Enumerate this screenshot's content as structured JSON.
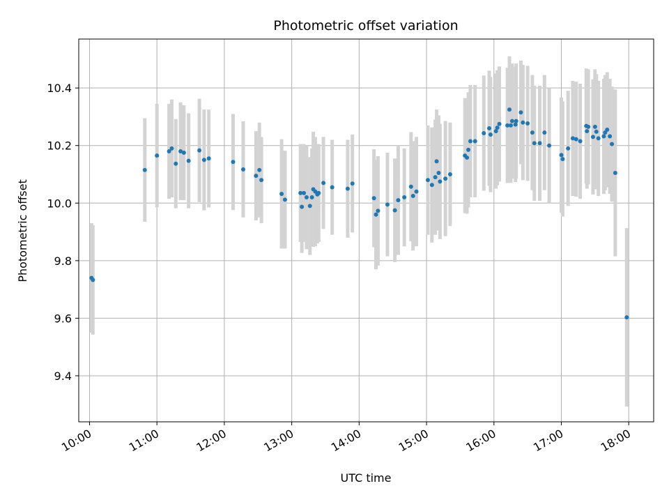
{
  "chart_data": {
    "type": "scatter",
    "title": "Photometric offset variation",
    "xlabel": "UTC time",
    "ylabel": "Photometric offset",
    "x_unit": "hours",
    "xlim": [
      9.84,
      18.37
    ],
    "ylim": [
      9.24,
      10.57
    ],
    "x_ticks": [
      {
        "value": 10,
        "label": "10:00"
      },
      {
        "value": 11,
        "label": "11:00"
      },
      {
        "value": 12,
        "label": "12:00"
      },
      {
        "value": 13,
        "label": "13:00"
      },
      {
        "value": 14,
        "label": "14:00"
      },
      {
        "value": 15,
        "label": "15:00"
      },
      {
        "value": 16,
        "label": "16:00"
      },
      {
        "value": 17,
        "label": "17:00"
      },
      {
        "value": 18,
        "label": "18:00"
      }
    ],
    "y_ticks": [
      {
        "value": 9.4,
        "label": "9.4"
      },
      {
        "value": 9.6,
        "label": "9.6"
      },
      {
        "value": 9.8,
        "label": "9.8"
      },
      {
        "value": 10.0,
        "label": "10.0"
      },
      {
        "value": 10.2,
        "label": "10.2"
      },
      {
        "value": 10.4,
        "label": "10.4"
      }
    ],
    "grid": true,
    "colors": {
      "point": "#1f77b4",
      "errorbar": "#d3d3d3",
      "grid": "#b0b0b0"
    },
    "points": [
      [
        10.03,
        9.74,
        0.19
      ],
      [
        10.05,
        9.733,
        0.19
      ],
      [
        10.82,
        10.115,
        0.18
      ],
      [
        11.0,
        10.165,
        0.18
      ],
      [
        11.18,
        10.18,
        0.165
      ],
      [
        11.22,
        10.19,
        0.17
      ],
      [
        11.28,
        10.137,
        0.155
      ],
      [
        11.35,
        10.18,
        0.17
      ],
      [
        11.4,
        10.175,
        0.165
      ],
      [
        11.47,
        10.147,
        0.165
      ],
      [
        11.63,
        10.183,
        0.18
      ],
      [
        11.7,
        10.15,
        0.175
      ],
      [
        11.77,
        10.155,
        0.17
      ],
      [
        12.13,
        10.143,
        0.167
      ],
      [
        12.28,
        10.117,
        0.167
      ],
      [
        12.47,
        10.095,
        0.155
      ],
      [
        12.52,
        10.115,
        0.165
      ],
      [
        12.55,
        10.08,
        0.15
      ],
      [
        12.85,
        10.032,
        0.19
      ],
      [
        12.9,
        10.012,
        0.17
      ],
      [
        13.13,
        10.035,
        0.17
      ],
      [
        13.15,
        9.987,
        0.16
      ],
      [
        13.18,
        10.035,
        0.17
      ],
      [
        13.22,
        10.02,
        0.18
      ],
      [
        13.27,
        9.99,
        0.17
      ],
      [
        13.3,
        10.02,
        0.17
      ],
      [
        13.32,
        10.048,
        0.2
      ],
      [
        13.35,
        10.04,
        0.19
      ],
      [
        13.38,
        10.03,
        0.17
      ],
      [
        13.4,
        10.035,
        0.17
      ],
      [
        13.47,
        10.07,
        0.16
      ],
      [
        13.6,
        10.055,
        0.165
      ],
      [
        13.83,
        10.05,
        0.17
      ],
      [
        13.9,
        10.068,
        0.17
      ],
      [
        14.22,
        10.017,
        0.17
      ],
      [
        14.25,
        9.96,
        0.19
      ],
      [
        14.28,
        9.973,
        0.19
      ],
      [
        14.42,
        9.995,
        0.18
      ],
      [
        14.53,
        9.975,
        0.18
      ],
      [
        14.58,
        10.01,
        0.19
      ],
      [
        14.67,
        10.02,
        0.17
      ],
      [
        14.77,
        10.057,
        0.19
      ],
      [
        14.8,
        10.025,
        0.19
      ],
      [
        14.85,
        10.04,
        0.19
      ],
      [
        15.02,
        10.08,
        0.19
      ],
      [
        15.08,
        10.063,
        0.2
      ],
      [
        15.13,
        10.09,
        0.2
      ],
      [
        15.15,
        10.145,
        0.18
      ],
      [
        15.18,
        10.105,
        0.2
      ],
      [
        15.2,
        10.075,
        0.2
      ],
      [
        15.28,
        10.085,
        0.2
      ],
      [
        15.35,
        10.1,
        0.18
      ],
      [
        15.57,
        10.165,
        0.2
      ],
      [
        15.6,
        10.158,
        0.195
      ],
      [
        15.62,
        10.185,
        0.2
      ],
      [
        15.65,
        10.215,
        0.195
      ],
      [
        15.72,
        10.215,
        0.195
      ],
      [
        15.85,
        10.243,
        0.2
      ],
      [
        15.93,
        10.26,
        0.2
      ],
      [
        15.95,
        10.238,
        0.2
      ],
      [
        16.03,
        10.25,
        0.2
      ],
      [
        16.05,
        10.262,
        0.2
      ],
      [
        16.08,
        10.275,
        0.2
      ],
      [
        16.2,
        10.27,
        0.2
      ],
      [
        16.23,
        10.325,
        0.185
      ],
      [
        16.25,
        10.27,
        0.2
      ],
      [
        16.27,
        10.285,
        0.2
      ],
      [
        16.32,
        10.273,
        0.2
      ],
      [
        16.33,
        10.285,
        0.2
      ],
      [
        16.4,
        10.315,
        0.18
      ],
      [
        16.43,
        10.28,
        0.2
      ],
      [
        16.5,
        10.277,
        0.2
      ],
      [
        16.57,
        10.245,
        0.2
      ],
      [
        16.6,
        10.208,
        0.2
      ],
      [
        16.68,
        10.208,
        0.2
      ],
      [
        16.75,
        10.245,
        0.2
      ],
      [
        16.82,
        10.2,
        0.2
      ],
      [
        17.0,
        10.167,
        0.2
      ],
      [
        17.02,
        10.153,
        0.2
      ],
      [
        17.1,
        10.19,
        0.2
      ],
      [
        17.17,
        10.225,
        0.2
      ],
      [
        17.22,
        10.222,
        0.2
      ],
      [
        17.28,
        10.215,
        0.2
      ],
      [
        17.37,
        10.268,
        0.2
      ],
      [
        17.38,
        10.25,
        0.2
      ],
      [
        17.4,
        10.265,
        0.2
      ],
      [
        17.47,
        10.23,
        0.2
      ],
      [
        17.5,
        10.265,
        0.2
      ],
      [
        17.52,
        10.248,
        0.2
      ],
      [
        17.55,
        10.225,
        0.2
      ],
      [
        17.63,
        10.232,
        0.2
      ],
      [
        17.65,
        10.245,
        0.2
      ],
      [
        17.68,
        10.255,
        0.2
      ],
      [
        17.72,
        10.232,
        0.2
      ],
      [
        17.75,
        10.205,
        0.2
      ],
      [
        17.8,
        10.105,
        0.29
      ],
      [
        17.97,
        9.603,
        0.31
      ]
    ]
  }
}
